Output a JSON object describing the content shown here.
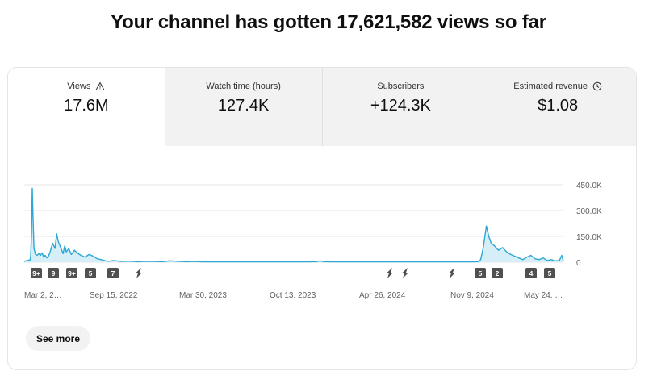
{
  "headline": "Your channel has gotten 17,621,582 views so far",
  "metrics": [
    {
      "label": "Views",
      "value": "17.6M",
      "icon": "warning-icon"
    },
    {
      "label": "Watch time (hours)",
      "value": "127.4K",
      "icon": ""
    },
    {
      "label": "Subscribers",
      "value": "+124.3K",
      "icon": ""
    },
    {
      "label": "Estimated revenue",
      "value": "$1.08",
      "icon": "clock-icon"
    }
  ],
  "chart_data": {
    "type": "area",
    "metric": "Views",
    "y_ticks": [
      "450.0K",
      "300.0K",
      "150.0K",
      "0"
    ],
    "ylim": [
      0,
      450000
    ],
    "x_tick_labels": [
      "Mar 2, 2…",
      "Sep 15, 2022",
      "Mar 30, 2023",
      "Oct 13, 2023",
      "Apr 26, 2024",
      "Nov 9, 2024",
      "May 24, …"
    ],
    "x": [
      0,
      2,
      4,
      6,
      7,
      8,
      9,
      10,
      11,
      12,
      14,
      16,
      18,
      20,
      22,
      24,
      26,
      28,
      30,
      32,
      35,
      38,
      40,
      42,
      45,
      48,
      50,
      52,
      55,
      58,
      62,
      65,
      70,
      75,
      80,
      85,
      90,
      95,
      100,
      105,
      110,
      120,
      130,
      140,
      150,
      160,
      170,
      180,
      190,
      200,
      210,
      220,
      230,
      240,
      250,
      260,
      270,
      280,
      290,
      300,
      310,
      320,
      330,
      340,
      350,
      360,
      365,
      370,
      380,
      390,
      400,
      410,
      420,
      430,
      440,
      450,
      460,
      470,
      480,
      490,
      500,
      510,
      520,
      530,
      540,
      550,
      560,
      563,
      566,
      570,
      573,
      576,
      580,
      585,
      590,
      595,
      600,
      605,
      610,
      615,
      620,
      625,
      630,
      635,
      640,
      645,
      650,
      655,
      660,
      663,
      665
    ],
    "values": [
      5000,
      8000,
      10000,
      12000,
      10000,
      30000,
      160000,
      430000,
      250000,
      80000,
      45000,
      40000,
      50000,
      40000,
      55000,
      30000,
      40000,
      25000,
      35000,
      60000,
      110000,
      80000,
      165000,
      120000,
      85000,
      50000,
      95000,
      60000,
      80000,
      45000,
      70000,
      55000,
      40000,
      30000,
      45000,
      35000,
      20000,
      15000,
      8000,
      6000,
      10000,
      4000,
      6000,
      3000,
      5000,
      4000,
      3000,
      8000,
      5000,
      3000,
      4000,
      2000,
      3000,
      2000,
      2000,
      2000,
      2000,
      2000,
      2000,
      2000,
      3000,
      2000,
      2000,
      2000,
      2000,
      3000,
      8000,
      3000,
      2000,
      2000,
      2000,
      2000,
      2000,
      2000,
      2000,
      2000,
      2000,
      2000,
      2000,
      2000,
      2000,
      2000,
      2000,
      2000,
      2000,
      2000,
      3000,
      15000,
      80000,
      210000,
      150000,
      110000,
      95000,
      70000,
      85000,
      60000,
      45000,
      35000,
      25000,
      15000,
      30000,
      40000,
      20000,
      15000,
      25000,
      10000,
      15000,
      8000,
      10000,
      40000,
      5000
    ],
    "annotation_markers": [
      {
        "label": "9+",
        "type": "text"
      },
      {
        "label": "9",
        "type": "text"
      },
      {
        "label": "9+",
        "type": "text"
      },
      {
        "label": "5",
        "type": "text"
      },
      {
        "label": "7",
        "type": "text"
      },
      {
        "label": "",
        "type": "shorts-icon"
      },
      {
        "label": "",
        "type": "shorts-icon"
      },
      {
        "label": "",
        "type": "shorts-icon"
      },
      {
        "label": "",
        "type": "shorts-icon"
      },
      {
        "label": "5",
        "type": "text"
      },
      {
        "label": "2",
        "type": "text"
      },
      {
        "label": "4",
        "type": "text"
      },
      {
        "label": "5",
        "type": "text"
      }
    ],
    "line_color": "#2ba8d3",
    "fill_color": "#d6eef8",
    "grid": true
  },
  "see_more_label": "See more"
}
